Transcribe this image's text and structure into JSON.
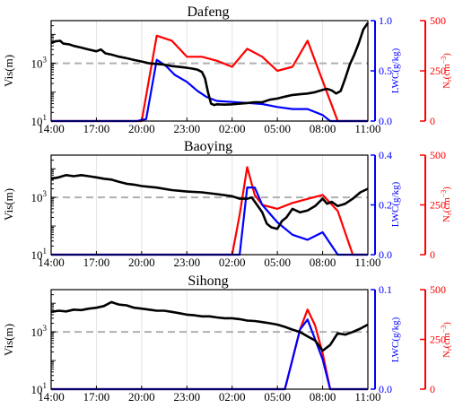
{
  "chart_data": [
    {
      "type": "line",
      "title": "Dafeng",
      "x_ticks": [
        "14:00",
        "17:00",
        "20:00",
        "23:00",
        "02:00",
        "05:00",
        "08:00",
        "11:00"
      ],
      "x_range_hours": [
        0,
        21
      ],
      "left_axis": {
        "label": "Vis(m)",
        "scale": "log",
        "range": [
          10,
          30000
        ],
        "major_ticks": [
          10,
          1000
        ],
        "major_tick_labels": [
          "10^1",
          "10^3"
        ]
      },
      "lwc_axis": {
        "label": "LWC(g/kg)",
        "range": [
          0,
          1.0
        ],
        "ticks": [
          0.0,
          0.5,
          1.0
        ],
        "tick_labels": [
          "0.0",
          "0.5",
          "1.0"
        ],
        "color": "#0000ff"
      },
      "n_axis": {
        "label": "N_r(cm^-3)",
        "range": [
          0,
          500
        ],
        "ticks": [
          0,
          250,
          500
        ],
        "tick_labels": [
          "0",
          "250",
          "500"
        ],
        "color": "#ff0000"
      },
      "threshold_line": {
        "y": 1000,
        "style": "dashed",
        "color": "#b0b0b0"
      },
      "series": [
        {
          "color": "#000000",
          "axis": "Vis",
          "x": [
            0.0,
            0.3,
            0.6,
            0.8,
            1.2,
            1.5,
            2.0,
            2.5,
            3.0,
            3.3,
            3.6,
            4.0,
            4.5,
            5.0,
            5.5,
            6.0,
            6.5,
            7.0,
            7.5,
            8.0,
            8.5,
            9.0,
            9.4,
            9.7,
            10.0,
            10.2,
            10.4,
            10.6,
            10.8,
            11.0,
            11.5,
            12.0,
            12.5,
            13.0,
            13.5,
            14.0,
            14.5,
            15.0,
            15.5,
            16.0,
            16.5,
            17.0,
            17.5,
            18.0,
            18.3,
            18.6,
            18.9,
            19.2,
            19.5,
            19.8,
            20.1,
            20.4,
            20.7,
            21.0
          ],
          "y": [
            5000,
            5800,
            6000,
            4800,
            4500,
            4000,
            3500,
            3000,
            2600,
            3000,
            2200,
            2000,
            1700,
            1500,
            1300,
            1150,
            1000,
            950,
            900,
            800,
            750,
            700,
            650,
            600,
            500,
            300,
            100,
            40,
            36,
            38,
            37,
            38,
            40,
            42,
            45,
            45,
            55,
            60,
            70,
            80,
            85,
            90,
            100,
            120,
            130,
            115,
            90,
            110,
            300,
            900,
            2000,
            5000,
            15000,
            25000
          ]
        },
        {
          "color": "#0000ff",
          "axis": "LWC",
          "x": [
            0.0,
            5.2,
            5.7,
            6.3,
            7.0,
            7.6,
            8.2,
            9.0,
            9.7,
            10.3,
            11.0,
            12.0,
            13.0,
            14.0,
            15.0,
            16.0,
            17.0,
            18.0,
            18.5,
            19.0,
            21.0
          ],
          "y": [
            0.0,
            0.0,
            0.0,
            0.02,
            0.61,
            0.55,
            0.46,
            0.39,
            0.3,
            0.24,
            0.2,
            0.19,
            0.18,
            0.17,
            0.14,
            0.12,
            0.12,
            0.06,
            0.0,
            0.0,
            0.0
          ]
        },
        {
          "color": "#ff0000",
          "axis": "N",
          "x": [
            0.0,
            5.2,
            5.7,
            6.0,
            7.0,
            8.0,
            9.0,
            10.0,
            11.0,
            12.0,
            13.0,
            14.0,
            15.0,
            16.0,
            17.0,
            18.0,
            19.0,
            19.5,
            21.0
          ],
          "y": [
            0,
            0,
            0,
            0,
            425,
            400,
            320,
            320,
            300,
            270,
            360,
            320,
            250,
            270,
            400,
            200,
            0,
            0,
            0
          ]
        }
      ]
    },
    {
      "type": "line",
      "title": "Baoying",
      "x_ticks": [
        "14:00",
        "17:00",
        "20:00",
        "23:00",
        "02:00",
        "05:00",
        "08:00",
        "11:00"
      ],
      "x_range_hours": [
        0,
        21
      ],
      "left_axis": {
        "label": "Vis(m)",
        "scale": "log",
        "range": [
          10,
          30000
        ],
        "major_ticks": [
          10,
          1000
        ],
        "major_tick_labels": [
          "10^1",
          "10^3"
        ]
      },
      "lwc_axis": {
        "label": "LWC(g/kg)",
        "range": [
          0,
          0.4
        ],
        "ticks": [
          0.0,
          0.2,
          0.4
        ],
        "tick_labels": [
          "0.0",
          "0.2",
          "0.4"
        ],
        "color": "#0000ff"
      },
      "n_axis": {
        "label": "N_r(cm^-3)",
        "range": [
          0,
          500
        ],
        "ticks": [
          0,
          250,
          500
        ],
        "tick_labels": [
          "0",
          "250",
          "500"
        ],
        "color": "#ff0000"
      },
      "threshold_line": {
        "y": 1000,
        "style": "dashed",
        "color": "#b0b0b0"
      },
      "series": [
        {
          "color": "#000000",
          "axis": "Vis",
          "x": [
            0.0,
            0.5,
            1.0,
            1.5,
            2.0,
            2.5,
            3.0,
            3.5,
            4.0,
            4.5,
            5.0,
            5.5,
            6.0,
            7.0,
            8.0,
            9.0,
            10.0,
            11.0,
            12.0,
            12.5,
            13.0,
            13.3,
            13.6,
            14.0,
            14.3,
            14.6,
            15.0,
            15.3,
            15.6,
            16.0,
            16.5,
            17.0,
            17.5,
            18.0,
            18.3,
            18.6,
            19.0,
            19.5,
            20.0,
            20.5,
            21.0
          ],
          "y": [
            4500,
            5000,
            6000,
            5500,
            6000,
            5500,
            5000,
            4500,
            4200,
            3500,
            3000,
            2800,
            2500,
            2200,
            1800,
            1600,
            1500,
            1300,
            1100,
            900,
            900,
            1000,
            600,
            300,
            120,
            90,
            80,
            150,
            200,
            400,
            300,
            350,
            500,
            900,
            600,
            700,
            500,
            600,
            900,
            1500,
            2000
          ]
        },
        {
          "color": "#0000ff",
          "axis": "LWC",
          "x": [
            0.0,
            11.5,
            12.0,
            12.5,
            13.0,
            13.5,
            14.0,
            15.0,
            16.0,
            17.0,
            18.0,
            19.0,
            19.5,
            21.0
          ],
          "y": [
            0.0,
            0.0,
            0.0,
            0.0,
            0.27,
            0.27,
            0.2,
            0.13,
            0.08,
            0.06,
            0.09,
            0.0,
            0.0,
            0.0
          ]
        },
        {
          "color": "#ff0000",
          "axis": "N",
          "x": [
            0.0,
            11.5,
            12.0,
            12.5,
            13.0,
            13.5,
            14.0,
            15.0,
            16.0,
            17.0,
            18.0,
            19.0,
            20.0,
            21.0
          ],
          "y": [
            0,
            0,
            0,
            200,
            440,
            300,
            250,
            230,
            260,
            280,
            300,
            220,
            0,
            0
          ]
        }
      ]
    },
    {
      "type": "line",
      "title": "Sihong",
      "x_ticks": [
        "14:00",
        "17:00",
        "20:00",
        "23:00",
        "02:00",
        "05:00",
        "08:00",
        "11:00"
      ],
      "x_range_hours": [
        0,
        21
      ],
      "left_axis": {
        "label": "Vis(m)",
        "scale": "log",
        "range": [
          10,
          30000
        ],
        "major_ticks": [
          10,
          1000
        ],
        "major_tick_labels": [
          "10^1",
          "10^3"
        ]
      },
      "lwc_axis": {
        "label": "LWC(g/kg)",
        "range": [
          0,
          0.1
        ],
        "ticks": [
          0.0,
          0.1
        ],
        "tick_labels": [
          "0.0",
          "0.1"
        ],
        "color": "#0000ff"
      },
      "n_axis": {
        "label": "N_r(cm^-3)",
        "range": [
          0,
          500
        ],
        "ticks": [
          0,
          250,
          500
        ],
        "tick_labels": [
          "0",
          "250",
          "500"
        ],
        "color": "#ff0000"
      },
      "threshold_line": {
        "y": 1000,
        "style": "dashed",
        "color": "#b0b0b0"
      },
      "series": [
        {
          "color": "#000000",
          "axis": "Vis",
          "x": [
            0.0,
            0.5,
            1.0,
            1.5,
            2.0,
            2.5,
            3.0,
            3.5,
            4.0,
            4.5,
            5.0,
            5.5,
            6.0,
            6.5,
            7.0,
            7.5,
            8.0,
            8.5,
            9.0,
            9.5,
            10.0,
            10.5,
            11.0,
            11.5,
            12.0,
            12.5,
            13.0,
            13.5,
            14.0,
            14.5,
            15.0,
            15.5,
            16.0,
            16.5,
            17.0,
            17.5,
            18.0,
            18.5,
            19.0,
            19.5,
            20.0,
            20.5,
            21.0
          ],
          "y": [
            5000,
            5500,
            5200,
            6000,
            5800,
            6500,
            7000,
            8000,
            11000,
            9000,
            8500,
            7000,
            6500,
            6000,
            5500,
            5500,
            5000,
            4500,
            4000,
            3800,
            3500,
            3500,
            3200,
            3000,
            3000,
            2800,
            2500,
            2400,
            2200,
            2000,
            1800,
            1500,
            1200,
            1000,
            700,
            500,
            220,
            350,
            900,
            800,
            1000,
            1300,
            1800
          ]
        },
        {
          "color": "#0000ff",
          "axis": "LWC",
          "x": [
            0.0,
            15.0,
            15.5,
            16.0,
            16.5,
            17.0,
            17.5,
            18.0,
            18.5,
            19.0,
            21.0
          ],
          "y": [
            0.0,
            0.0,
            0.0,
            0.03,
            0.06,
            0.07,
            0.05,
            0.03,
            0.0,
            0.0,
            0.0
          ]
        },
        {
          "color": "#ff0000",
          "axis": "N",
          "x": [
            0.0,
            15.0,
            15.5,
            16.0,
            16.5,
            17.0,
            17.5,
            18.0,
            18.5,
            19.0,
            21.0
          ],
          "y": [
            0,
            0,
            0,
            150,
            300,
            400,
            320,
            180,
            0,
            0,
            0
          ]
        }
      ]
    }
  ]
}
